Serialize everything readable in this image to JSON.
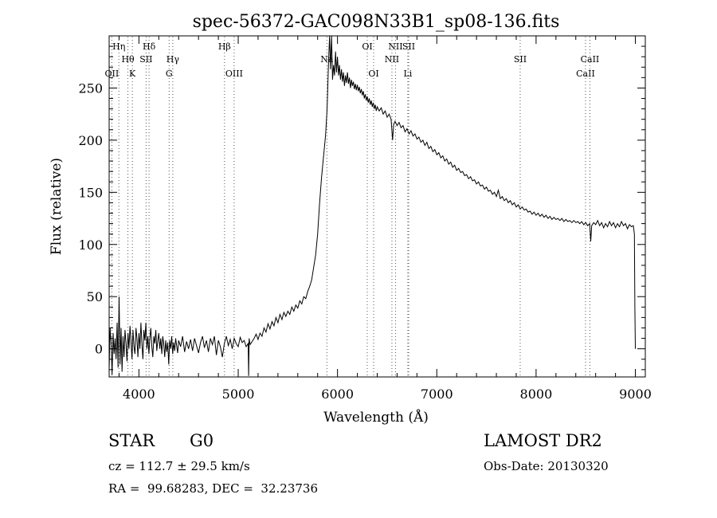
{
  "chart_data": {
    "type": "line",
    "title": "spec-56372-GAC098N33B1_sp08-136.fits",
    "xlabel": "Wavelength (Å)",
    "ylabel": "Flux (relative)",
    "xlim": [
      3700,
      9100
    ],
    "ylim": [
      -27,
      300
    ],
    "xticks": [
      {
        "v": 4000,
        "label": "4000"
      },
      {
        "v": 5000,
        "label": "5000"
      },
      {
        "v": 6000,
        "label": "6000"
      },
      {
        "v": 7000,
        "label": "7000"
      },
      {
        "v": 8000,
        "label": "8000"
      },
      {
        "v": 9000,
        "label": "9000"
      }
    ],
    "yticks": [
      {
        "v": 0,
        "label": "0"
      },
      {
        "v": 50,
        "label": "50"
      },
      {
        "v": 100,
        "label": "100"
      },
      {
        "v": 150,
        "label": "150"
      },
      {
        "v": 200,
        "label": "200"
      },
      {
        "v": 250,
        "label": "250"
      }
    ],
    "spectrum": [
      [
        3700,
        -20
      ],
      [
        3710,
        20
      ],
      [
        3720,
        5
      ],
      [
        3730,
        -25
      ],
      [
        3740,
        15
      ],
      [
        3750,
        -5
      ],
      [
        3760,
        10
      ],
      [
        3770,
        -10
      ],
      [
        3780,
        25
      ],
      [
        3790,
        -18
      ],
      [
        3800,
        50
      ],
      [
        3810,
        -15
      ],
      [
        3820,
        20
      ],
      [
        3830,
        -22
      ],
      [
        3840,
        12
      ],
      [
        3850,
        -8
      ],
      [
        3860,
        18
      ],
      [
        3870,
        5
      ],
      [
        3880,
        -12
      ],
      [
        3890,
        15
      ],
      [
        3900,
        0
      ],
      [
        3910,
        22
      ],
      [
        3920,
        8
      ],
      [
        3930,
        -10
      ],
      [
        3940,
        18
      ],
      [
        3950,
        2
      ],
      [
        3960,
        -5
      ],
      [
        3970,
        20
      ],
      [
        3980,
        10
      ],
      [
        3990,
        -8
      ],
      [
        4000,
        15
      ],
      [
        4010,
        0
      ],
      [
        4020,
        25
      ],
      [
        4030,
        5
      ],
      [
        4040,
        -10
      ],
      [
        4050,
        18
      ],
      [
        4060,
        8
      ],
      [
        4070,
        25
      ],
      [
        4080,
        0
      ],
      [
        4090,
        12
      ],
      [
        4100,
        -5
      ],
      [
        4110,
        10
      ],
      [
        4120,
        20
      ],
      [
        4130,
        2
      ],
      [
        4140,
        -8
      ],
      [
        4150,
        12
      ],
      [
        4160,
        5
      ],
      [
        4170,
        18
      ],
      [
        4180,
        -2
      ],
      [
        4190,
        8
      ],
      [
        4200,
        15
      ],
      [
        4210,
        0
      ],
      [
        4220,
        10
      ],
      [
        4230,
        -5
      ],
      [
        4240,
        12
      ],
      [
        4250,
        5
      ],
      [
        4260,
        -8
      ],
      [
        4270,
        8
      ],
      [
        4280,
        -3
      ],
      [
        4290,
        6
      ],
      [
        4300,
        -15
      ],
      [
        4310,
        8
      ],
      [
        4320,
        0
      ],
      [
        4330,
        12
      ],
      [
        4340,
        -5
      ],
      [
        4350,
        6
      ],
      [
        4360,
        -2
      ],
      [
        4370,
        10
      ],
      [
        4380,
        3
      ],
      [
        4390,
        -4
      ],
      [
        4400,
        8
      ],
      [
        4420,
        2
      ],
      [
        4440,
        12
      ],
      [
        4460,
        -3
      ],
      [
        4480,
        7
      ],
      [
        4500,
        0
      ],
      [
        4520,
        9
      ],
      [
        4540,
        -2
      ],
      [
        4560,
        10
      ],
      [
        4580,
        3
      ],
      [
        4600,
        -4
      ],
      [
        4620,
        6
      ],
      [
        4640,
        12
      ],
      [
        4660,
        1
      ],
      [
        4680,
        8
      ],
      [
        4700,
        -3
      ],
      [
        4720,
        10
      ],
      [
        4740,
        4
      ],
      [
        4760,
        12
      ],
      [
        4780,
        -6
      ],
      [
        4800,
        8
      ],
      [
        4820,
        2
      ],
      [
        4840,
        -8
      ],
      [
        4860,
        5
      ],
      [
        4880,
        12
      ],
      [
        4900,
        3
      ],
      [
        4920,
        9
      ],
      [
        4940,
        0
      ],
      [
        4960,
        10
      ],
      [
        4980,
        5
      ],
      [
        5000,
        2
      ],
      [
        5020,
        11
      ],
      [
        5040,
        6
      ],
      [
        5060,
        8
      ],
      [
        5080,
        2
      ],
      [
        5100,
        5
      ],
      [
        5105,
        -26
      ],
      [
        5110,
        10
      ],
      [
        5120,
        4
      ],
      [
        5140,
        7
      ],
      [
        5160,
        10
      ],
      [
        5180,
        14
      ],
      [
        5200,
        9
      ],
      [
        5220,
        15
      ],
      [
        5240,
        12
      ],
      [
        5260,
        20
      ],
      [
        5280,
        16
      ],
      [
        5300,
        24
      ],
      [
        5320,
        19
      ],
      [
        5340,
        26
      ],
      [
        5360,
        22
      ],
      [
        5380,
        30
      ],
      [
        5400,
        25
      ],
      [
        5420,
        33
      ],
      [
        5440,
        28
      ],
      [
        5460,
        35
      ],
      [
        5480,
        31
      ],
      [
        5500,
        36
      ],
      [
        5520,
        33
      ],
      [
        5540,
        40
      ],
      [
        5560,
        36
      ],
      [
        5580,
        42
      ],
      [
        5600,
        39
      ],
      [
        5620,
        46
      ],
      [
        5640,
        43
      ],
      [
        5660,
        50
      ],
      [
        5680,
        48
      ],
      [
        5700,
        55
      ],
      [
        5720,
        60
      ],
      [
        5740,
        66
      ],
      [
        5760,
        78
      ],
      [
        5780,
        90
      ],
      [
        5800,
        110
      ],
      [
        5820,
        140
      ],
      [
        5840,
        165
      ],
      [
        5860,
        185
      ],
      [
        5880,
        205
      ],
      [
        5895,
        230
      ],
      [
        5900,
        245
      ],
      [
        5910,
        275
      ],
      [
        5920,
        300
      ],
      [
        5930,
        268
      ],
      [
        5940,
        300
      ],
      [
        5950,
        258
      ],
      [
        5960,
        272
      ],
      [
        5970,
        262
      ],
      [
        5980,
        285
      ],
      [
        5990,
        265
      ],
      [
        6000,
        280
      ],
      [
        6010,
        262
      ],
      [
        6020,
        272
      ],
      [
        6030,
        258
      ],
      [
        6040,
        268
      ],
      [
        6050,
        256
      ],
      [
        6060,
        265
      ],
      [
        6070,
        252
      ],
      [
        6080,
        262
      ],
      [
        6090,
        255
      ],
      [
        6100,
        265
      ],
      [
        6110,
        254
      ],
      [
        6120,
        260
      ],
      [
        6130,
        250
      ],
      [
        6140,
        258
      ],
      [
        6150,
        252
      ],
      [
        6160,
        256
      ],
      [
        6170,
        249
      ],
      [
        6180,
        254
      ],
      [
        6190,
        248
      ],
      [
        6200,
        253
      ],
      [
        6210,
        247
      ],
      [
        6220,
        251
      ],
      [
        6230,
        245
      ],
      [
        6240,
        249
      ],
      [
        6250,
        243
      ],
      [
        6260,
        247
      ],
      [
        6270,
        240
      ],
      [
        6280,
        244
      ],
      [
        6290,
        238
      ],
      [
        6300,
        242
      ],
      [
        6310,
        236
      ],
      [
        6320,
        240
      ],
      [
        6330,
        234
      ],
      [
        6340,
        238
      ],
      [
        6350,
        232
      ],
      [
        6360,
        236
      ],
      [
        6370,
        230
      ],
      [
        6380,
        234
      ],
      [
        6390,
        228
      ],
      [
        6400,
        232
      ],
      [
        6420,
        228
      ],
      [
        6440,
        231
      ],
      [
        6460,
        225
      ],
      [
        6480,
        228
      ],
      [
        6500,
        222
      ],
      [
        6520,
        225
      ],
      [
        6540,
        220
      ],
      [
        6555,
        200
      ],
      [
        6565,
        215
      ],
      [
        6580,
        218
      ],
      [
        6600,
        214
      ],
      [
        6620,
        217
      ],
      [
        6640,
        212
      ],
      [
        6660,
        214
      ],
      [
        6680,
        208
      ],
      [
        6700,
        211
      ],
      [
        6720,
        206
      ],
      [
        6740,
        209
      ],
      [
        6760,
        204
      ],
      [
        6780,
        206
      ],
      [
        6800,
        201
      ],
      [
        6820,
        203
      ],
      [
        6840,
        198
      ],
      [
        6860,
        200
      ],
      [
        6880,
        195
      ],
      [
        6900,
        198
      ],
      [
        6920,
        192
      ],
      [
        6940,
        194
      ],
      [
        6960,
        189
      ],
      [
        6980,
        191
      ],
      [
        7000,
        186
      ],
      [
        7020,
        188
      ],
      [
        7040,
        183
      ],
      [
        7060,
        185
      ],
      [
        7080,
        180
      ],
      [
        7100,
        182
      ],
      [
        7120,
        177
      ],
      [
        7140,
        179
      ],
      [
        7160,
        174
      ],
      [
        7180,
        176
      ],
      [
        7200,
        171
      ],
      [
        7220,
        173
      ],
      [
        7240,
        169
      ],
      [
        7260,
        170
      ],
      [
        7280,
        166
      ],
      [
        7300,
        167
      ],
      [
        7320,
        163
      ],
      [
        7340,
        165
      ],
      [
        7360,
        161
      ],
      [
        7380,
        162
      ],
      [
        7400,
        158
      ],
      [
        7420,
        160
      ],
      [
        7440,
        156
      ],
      [
        7460,
        157
      ],
      [
        7480,
        153
      ],
      [
        7500,
        155
      ],
      [
        7520,
        151
      ],
      [
        7540,
        152
      ],
      [
        7560,
        148
      ],
      [
        7580,
        150
      ],
      [
        7600,
        146
      ],
      [
        7620,
        152
      ],
      [
        7640,
        144
      ],
      [
        7660,
        146
      ],
      [
        7680,
        142
      ],
      [
        7700,
        144
      ],
      [
        7720,
        140
      ],
      [
        7740,
        142
      ],
      [
        7760,
        138
      ],
      [
        7780,
        140
      ],
      [
        7800,
        136
      ],
      [
        7820,
        138
      ],
      [
        7840,
        134
      ],
      [
        7860,
        136
      ],
      [
        7880,
        133
      ],
      [
        7900,
        134
      ],
      [
        7920,
        131
      ],
      [
        7940,
        132
      ],
      [
        7960,
        129
      ],
      [
        7980,
        131
      ],
      [
        8000,
        128
      ],
      [
        8020,
        130
      ],
      [
        8040,
        127
      ],
      [
        8060,
        129
      ],
      [
        8080,
        126
      ],
      [
        8100,
        128
      ],
      [
        8120,
        125
      ],
      [
        8140,
        127
      ],
      [
        8160,
        124
      ],
      [
        8180,
        126
      ],
      [
        8200,
        124
      ],
      [
        8220,
        125
      ],
      [
        8240,
        123
      ],
      [
        8260,
        125
      ],
      [
        8280,
        122
      ],
      [
        8300,
        124
      ],
      [
        8320,
        122
      ],
      [
        8340,
        123
      ],
      [
        8360,
        121
      ],
      [
        8380,
        123
      ],
      [
        8400,
        121
      ],
      [
        8420,
        122
      ],
      [
        8440,
        120
      ],
      [
        8460,
        122
      ],
      [
        8480,
        119
      ],
      [
        8500,
        121
      ],
      [
        8520,
        118
      ],
      [
        8540,
        120
      ],
      [
        8550,
        103
      ],
      [
        8560,
        118
      ],
      [
        8580,
        121
      ],
      [
        8600,
        119
      ],
      [
        8620,
        123
      ],
      [
        8640,
        118
      ],
      [
        8660,
        121
      ],
      [
        8680,
        116
      ],
      [
        8700,
        120
      ],
      [
        8720,
        117
      ],
      [
        8740,
        122
      ],
      [
        8760,
        118
      ],
      [
        8780,
        121
      ],
      [
        8800,
        116
      ],
      [
        8820,
        120
      ],
      [
        8840,
        117
      ],
      [
        8860,
        122
      ],
      [
        8880,
        118
      ],
      [
        8900,
        120
      ],
      [
        8920,
        115
      ],
      [
        8940,
        119
      ],
      [
        8960,
        117
      ],
      [
        8980,
        118
      ],
      [
        8990,
        110
      ],
      [
        8995,
        40
      ],
      [
        9000,
        0
      ]
    ],
    "lines": [
      {
        "x": 3727,
        "labels": [
          {
            "text": "OII",
            "row": 3
          }
        ]
      },
      {
        "x": 3798,
        "labels": [
          {
            "text": "Hη",
            "row": 1
          }
        ]
      },
      {
        "x": 3889,
        "labels": [
          {
            "text": "Hθ",
            "row": 2
          }
        ]
      },
      {
        "x": 3934,
        "labels": [
          {
            "text": "K",
            "row": 3
          }
        ]
      },
      {
        "x": 4072,
        "labels": [
          {
            "text": "SII",
            "row": 2
          }
        ]
      },
      {
        "x": 4102,
        "labels": [
          {
            "text": "Hδ",
            "row": 1
          }
        ]
      },
      {
        "x": 4304,
        "labels": [
          {
            "text": "G",
            "row": 3
          }
        ]
      },
      {
        "x": 4341,
        "labels": [
          {
            "text": "Hγ",
            "row": 2
          }
        ]
      },
      {
        "x": 4862,
        "labels": [
          {
            "text": "Hβ",
            "row": 1
          }
        ]
      },
      {
        "x": 4959,
        "labels": [
          {
            "text": "OIII",
            "row": 3
          }
        ]
      },
      {
        "x": 5893,
        "labels": [
          {
            "text": "Na",
            "row": 2
          }
        ]
      },
      {
        "x": 6300,
        "labels": [
          {
            "text": "OI",
            "row": 1
          }
        ]
      },
      {
        "x": 6364,
        "labels": [
          {
            "text": "OI",
            "row": 3
          }
        ]
      },
      {
        "x": 6548,
        "labels": [
          {
            "text": "NII",
            "row": 2
          }
        ]
      },
      {
        "x": 6584,
        "labels": [
          {
            "text": "NII",
            "row": 1
          }
        ]
      },
      {
        "x": 6708,
        "labels": [
          {
            "text": "Li",
            "row": 3
          }
        ]
      },
      {
        "x": 6717,
        "labels": [
          {
            "text": "SII",
            "row": 1
          }
        ]
      },
      {
        "x": 7840,
        "labels": [
          {
            "text": "SII",
            "row": 2
          }
        ]
      },
      {
        "x": 8498,
        "labels": [
          {
            "text": "CaII",
            "row": 3
          }
        ]
      },
      {
        "x": 8542,
        "labels": [
          {
            "text": "CaII",
            "row": 2
          }
        ]
      }
    ]
  },
  "info": {
    "class": "STAR",
    "subclass": "G0",
    "survey": "LAMOST DR2",
    "cz": "cz = 112.7 ± 29.5 km/s",
    "obs_date": "Obs-Date: 20130320",
    "coords": "RA =  99.68283, DEC =  32.23736"
  }
}
